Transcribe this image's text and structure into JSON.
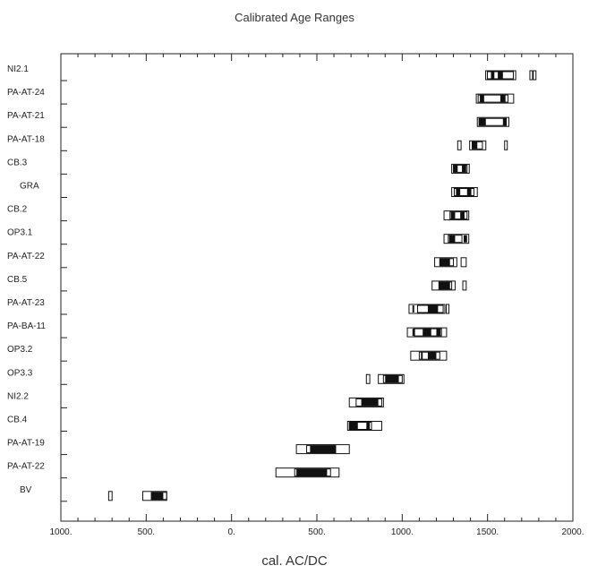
{
  "chart_data": {
    "type": "range",
    "title": "Calibrated Age Ranges",
    "xlabel": "cal. AC/DC",
    "ylabel": "",
    "xlim": [
      -1000,
      2000
    ],
    "x_ticks": [
      -1000,
      -500,
      0,
      500,
      1000,
      1500,
      2000
    ],
    "x_tick_labels": [
      "1000.",
      "500.",
      "0.",
      "500.",
      "1000.",
      "1500.",
      "2000."
    ],
    "grid": false,
    "series": [
      {
        "label": "NI2.1",
        "range68": [
          1499,
          1651
        ],
        "range95": [
          1489,
          1665
        ],
        "outliers": [
          [
            1748,
            1762
          ],
          [
            1768,
            1780
          ]
        ],
        "cores": [
          [
            1520,
            1540
          ],
          [
            1560,
            1590
          ]
        ]
      },
      {
        "label": "PA-AT-24",
        "range68": [
          1445,
          1620
        ],
        "range95": [
          1434,
          1653
        ],
        "outliers": [],
        "cores": [
          [
            1455,
            1480
          ],
          [
            1575,
            1605
          ]
        ]
      },
      {
        "label": "PA-AT-21",
        "range68": [
          1450,
          1610
        ],
        "range95": [
          1440,
          1625
        ],
        "outliers": [],
        "cores": [
          [
            1450,
            1490
          ],
          [
            1590,
            1610
          ]
        ]
      },
      {
        "label": "PA-AT-18",
        "range68": [
          1410,
          1470
        ],
        "range95": [
          1395,
          1490
        ],
        "outliers": [
          [
            1325,
            1345
          ],
          [
            1600,
            1606
          ]
        ],
        "cores": [
          [
            1410,
            1440
          ]
        ]
      },
      {
        "label": "CB.3",
        "range68": [
          1300,
          1380
        ],
        "range95": [
          1290,
          1393
        ],
        "outliers": [],
        "cores": [
          [
            1300,
            1325
          ],
          [
            1350,
            1375
          ]
        ]
      },
      {
        "label": "GRA",
        "range68": [
          1305,
          1420
        ],
        "range95": [
          1290,
          1440
        ],
        "outliers": [],
        "cores": [
          [
            1315,
            1340
          ],
          [
            1380,
            1405
          ]
        ]
      },
      {
        "label": "CB.2",
        "range68": [
          1280,
          1380
        ],
        "range95": [
          1245,
          1390
        ],
        "outliers": [],
        "cores": [
          [
            1285,
            1310
          ],
          [
            1340,
            1365
          ]
        ]
      },
      {
        "label": "OP3.1",
        "range68": [
          1270,
          1350
        ],
        "range95": [
          1245,
          1390
        ],
        "outliers": [],
        "cores": [
          [
            1275,
            1310
          ],
          [
            1360,
            1380
          ]
        ]
      },
      {
        "label": "PA-AT-22",
        "range68": [
          1220,
          1300
        ],
        "range95": [
          1190,
          1320
        ],
        "outliers": [
          [
            1345,
            1375
          ]
        ],
        "cores": [
          [
            1220,
            1280
          ]
        ]
      },
      {
        "label": "CB.5",
        "range68": [
          1215,
          1290
        ],
        "range95": [
          1175,
          1310
        ],
        "outliers": [
          [
            1355,
            1375
          ]
        ],
        "cores": [
          [
            1215,
            1280
          ]
        ]
      },
      {
        "label": "PA-AT-23",
        "range68": [
          1090,
          1240
        ],
        "range95": [
          1040,
          1250
        ],
        "outliers": [
          [
            1258,
            1265
          ]
        ],
        "cores": [
          [
            1060,
            1070
          ],
          [
            1150,
            1210
          ]
        ]
      },
      {
        "label": "PA-BA-11",
        "range68": [
          1070,
          1230
        ],
        "range95": [
          1030,
          1260
        ],
        "outliers": [],
        "cores": [
          [
            1060,
            1075
          ],
          [
            1120,
            1170
          ],
          [
            1200,
            1225
          ]
        ]
      },
      {
        "label": "OP3.2",
        "range68": [
          1100,
          1220
        ],
        "range95": [
          1050,
          1260
        ],
        "outliers": [],
        "cores": [
          [
            1110,
            1120
          ],
          [
            1150,
            1200
          ]
        ]
      },
      {
        "label": "OP3.3",
        "range68": [
          890,
          1000
        ],
        "range95": [
          860,
          1010
        ],
        "outliers": [
          [
            790,
            810
          ]
        ],
        "cores": [
          [
            900,
            980
          ]
        ]
      },
      {
        "label": "NI2.2",
        "range68": [
          730,
          880
        ],
        "range95": [
          690,
          890
        ],
        "outliers": [],
        "cores": [
          [
            760,
            860
          ]
        ]
      },
      {
        "label": "CB.4",
        "range68": [
          690,
          820
        ],
        "range95": [
          680,
          880
        ],
        "outliers": [],
        "cores": [
          [
            690,
            740
          ],
          [
            790,
            810
          ]
        ]
      },
      {
        "label": "PA-AT-19",
        "range68": [
          440,
          610
        ],
        "range95": [
          380,
          690
        ],
        "outliers": [],
        "cores": [
          [
            460,
            610
          ]
        ]
      },
      {
        "label": "PA-AT-22",
        "range68": [
          370,
          580
        ],
        "range95": [
          260,
          630
        ],
        "outliers": [],
        "cores": [
          [
            380,
            560
          ]
        ]
      },
      {
        "label": "BV",
        "range68": [
          -470,
          -380
        ],
        "range95": [
          -520,
          -380
        ],
        "outliers": [
          [
            -720,
            -700
          ]
        ],
        "cores": [
          [
            -470,
            -400
          ]
        ]
      }
    ]
  }
}
